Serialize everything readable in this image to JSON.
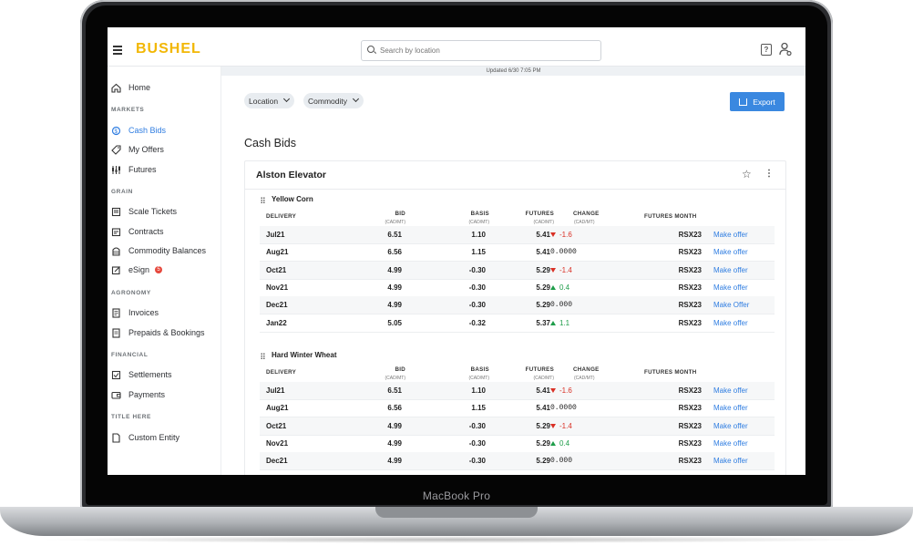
{
  "device": {
    "model_label": "MacBook Pro"
  },
  "app": {
    "logo": "BUSHEL",
    "search_placeholder": "Search by location",
    "help_icon_text": "?",
    "updated": "Updated 6/30 7:05 PM"
  },
  "sidebar": {
    "home": "Home",
    "markets_header": "MARKETS",
    "cash_bids": "Cash Bids",
    "my_offers": "My Offers",
    "futures": "Futures",
    "grain_header": "GRAIN",
    "scale_tickets": "Scale Tickets",
    "contracts": "Contracts",
    "commodity_balances": "Commodity Balances",
    "esign": "eSign",
    "esign_badge": "5",
    "agronomy_header": "AGRONOMY",
    "invoices": "Invoices",
    "prepaids": "Prepaids & Bookings",
    "financial_header": "FINANCIAL",
    "settlements": "Settlements",
    "payments": "Payments",
    "title_header": "TITLE HERE",
    "custom_entity": "Custom Entity"
  },
  "filters": {
    "location": "Location",
    "commodity": "Commodity",
    "export": "Export"
  },
  "page": {
    "title": "Cash Bids",
    "elevator": "Alston Elevator"
  },
  "table_headers": {
    "delivery": "DELIVERY",
    "bid": "BID",
    "bid_unit": "(CAD/MT)",
    "basis": "BASIS",
    "basis_unit": "(CAD/MT)",
    "futures": "FUTURES",
    "futures_unit": "(CAD/MT)",
    "change": "CHANGE",
    "change_unit": "(CAD/MT)",
    "futures_month": "FUTURES MONTH"
  },
  "sections": [
    {
      "name": "Yellow Corn",
      "rows": [
        {
          "delivery": "Jul21",
          "bid": "6.51",
          "basis": "1.10",
          "futures": "5.41",
          "change": "-1.6",
          "dir": "down",
          "month": "RSX23",
          "action": "Make offer"
        },
        {
          "delivery": "Aug21",
          "bid": "6.56",
          "basis": "1.15",
          "futures": "5.41",
          "change": "0.0000",
          "dir": "flat",
          "month": "RSX23",
          "action": "Make offer"
        },
        {
          "delivery": "Oct21",
          "bid": "4.99",
          "basis": "-0.30",
          "futures": "5.29",
          "change": "-1.4",
          "dir": "down",
          "month": "RSX23",
          "action": "Make offer"
        },
        {
          "delivery": "Nov21",
          "bid": "4.99",
          "basis": "-0.30",
          "futures": "5.29",
          "change": "0.4",
          "dir": "up",
          "month": "RSX23",
          "action": "Make offer"
        },
        {
          "delivery": "Dec21",
          "bid": "4.99",
          "basis": "-0.30",
          "futures": "5.29",
          "change": "0.000",
          "dir": "flat",
          "month": "RSX23",
          "action": "Make Offer"
        },
        {
          "delivery": "Jan22",
          "bid": "5.05",
          "basis": "-0.32",
          "futures": "5.37",
          "change": "1.1",
          "dir": "up",
          "month": "RSX23",
          "action": "Make offer"
        }
      ]
    },
    {
      "name": "Hard Winter Wheat",
      "rows": [
        {
          "delivery": "Jul21",
          "bid": "6.51",
          "basis": "1.10",
          "futures": "5.41",
          "change": "-1.6",
          "dir": "down",
          "month": "RSX23",
          "action": "Make offer"
        },
        {
          "delivery": "Aug21",
          "bid": "6.56",
          "basis": "1.15",
          "futures": "5.41",
          "change": "0.0000",
          "dir": "flat",
          "month": "RSX23",
          "action": "Make offer"
        },
        {
          "delivery": "Oct21",
          "bid": "4.99",
          "basis": "-0.30",
          "futures": "5.29",
          "change": "-1.4",
          "dir": "down",
          "month": "RSX23",
          "action": "Make offer"
        },
        {
          "delivery": "Nov21",
          "bid": "4.99",
          "basis": "-0.30",
          "futures": "5.29",
          "change": "0.4",
          "dir": "up",
          "month": "RSX23",
          "action": "Make offer"
        },
        {
          "delivery": "Dec21",
          "bid": "4.99",
          "basis": "-0.30",
          "futures": "5.29",
          "change": "0.000",
          "dir": "flat",
          "month": "RSX23",
          "action": "Make offer"
        }
      ]
    }
  ],
  "colors": {
    "accent": "#3a88e0",
    "brand": "#f2b705",
    "up": "#1f9d4a",
    "down": "#d93025"
  }
}
